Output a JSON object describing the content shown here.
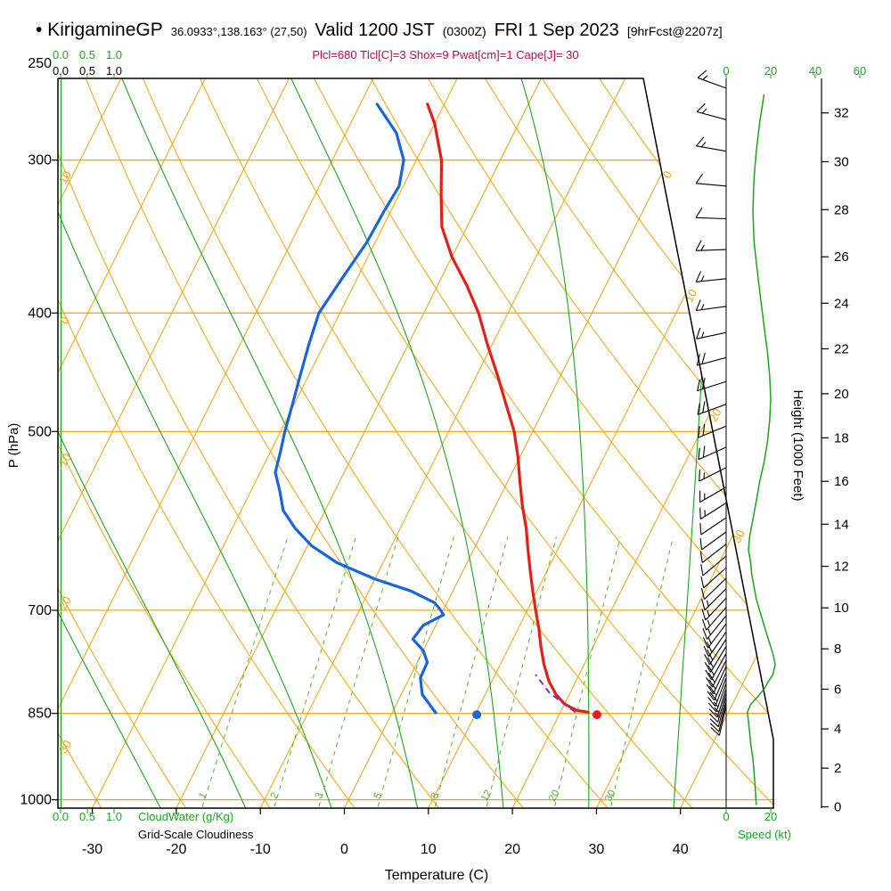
{
  "header": {
    "station": "• KirigamineGP",
    "coords": "36.0933°,138.163° (27,50)",
    "valid": "Valid 1200 JST",
    "valid_sub": "(0300Z)",
    "date": "FRI 1 Sep 2023",
    "fcst": "[9hrFcst@2207z]"
  },
  "params_line": "Plcl=680 Tlcl[C]=3 Shox=9 Pwat[cm]=1 Cape[J]= 30",
  "colors": {
    "grid_orange": "#f2a107",
    "green": "#1ca51c",
    "mixing_green": "#55b42e",
    "temperature_red": "#e32017",
    "dewpoint_blue": "#1a66d9",
    "parcel_purple": "#7b2fbe",
    "params_magenta": "#cc0055",
    "frame_black": "#000000"
  },
  "chart_data": {
    "type": "line",
    "diagram": "skew-t log-p forecast sounding",
    "pressure_axis": {
      "label": "P (hPa)",
      "ticks": [
        250,
        300,
        400,
        500,
        700,
        850,
        1000
      ],
      "gridlines": [
        300,
        400,
        500,
        700,
        850,
        1000
      ],
      "range": [
        250,
        1015
      ]
    },
    "temperature_axis": {
      "label": "Temperature (C)",
      "ticks": [
        -30,
        -20,
        -10,
        0,
        10,
        20,
        30,
        40
      ]
    },
    "height_axis": {
      "label": "Height (1000 Feet)",
      "ticks": [
        0,
        2,
        4,
        6,
        8,
        10,
        12,
        14,
        16,
        18,
        20,
        22,
        24,
        26,
        28,
        30,
        32
      ]
    },
    "speed_axis": {
      "label": "Speed (kt)",
      "top_ticks": [
        0,
        20,
        40,
        60
      ],
      "bottom_ticks": [
        0,
        20
      ]
    },
    "cloudwater_axis": {
      "label": "CloudWater (g/Kg)",
      "ticks": [
        "0.0",
        "0.5",
        "1.0"
      ]
    },
    "cloudiness_axis": {
      "label": "Grid-Scale Cloudiness",
      "ticks": [
        "0.0",
        "0.5",
        "1.0"
      ]
    },
    "dry_adiabat_labels": [
      10,
      0,
      -10,
      -20,
      -30
    ],
    "isotherm_labels_diagonal": [
      0,
      10,
      20,
      30
    ],
    "mixing_ratio_lines": [
      1,
      2,
      3,
      5,
      8,
      12,
      20,
      30
    ],
    "moist_adiabat_starts": [
      -20,
      -10,
      0,
      10,
      20,
      30,
      40
    ],
    "isotherm_range": {
      "min": -80,
      "max": 40,
      "step": 10
    },
    "dry_adiabat_range": {
      "min": -40,
      "max": 140,
      "step": 10
    },
    "temperature_profile": [
      [
        270,
        -32
      ],
      [
        280,
        -30
      ],
      [
        300,
        -27
      ],
      [
        320,
        -25
      ],
      [
        340,
        -23
      ],
      [
        360,
        -20
      ],
      [
        380,
        -16.5
      ],
      [
        400,
        -13.5
      ],
      [
        425,
        -10.5
      ],
      [
        450,
        -7.5
      ],
      [
        475,
        -4.8
      ],
      [
        500,
        -2.2
      ],
      [
        525,
        -0.2
      ],
      [
        550,
        1.5
      ],
      [
        575,
        3.2
      ],
      [
        600,
        5
      ],
      [
        625,
        6.5
      ],
      [
        650,
        8
      ],
      [
        675,
        9.5
      ],
      [
        700,
        11
      ],
      [
        725,
        12.5
      ],
      [
        750,
        13.8
      ],
      [
        775,
        15.2
      ],
      [
        800,
        16.8
      ],
      [
        820,
        18.4
      ],
      [
        835,
        20
      ],
      [
        845,
        21.8
      ],
      [
        848,
        23.3
      ]
    ],
    "dewpoint_profile": [
      [
        270,
        -38
      ],
      [
        285,
        -34
      ],
      [
        300,
        -31.5
      ],
      [
        315,
        -30.5
      ],
      [
        330,
        -30.8
      ],
      [
        350,
        -31
      ],
      [
        375,
        -31.8
      ],
      [
        400,
        -32.5
      ],
      [
        425,
        -31.8
      ],
      [
        450,
        -31
      ],
      [
        475,
        -30.2
      ],
      [
        500,
        -29.5
      ],
      [
        520,
        -28.8
      ],
      [
        540,
        -28.2
      ],
      [
        560,
        -26.5
      ],
      [
        580,
        -25
      ],
      [
        600,
        -22.5
      ],
      [
        620,
        -19.5
      ],
      [
        640,
        -15.5
      ],
      [
        660,
        -10
      ],
      [
        675,
        -5
      ],
      [
        690,
        -1.5
      ],
      [
        700,
        -0.3
      ],
      [
        706,
        0.3
      ],
      [
        720,
        -1.5
      ],
      [
        739,
        -1.9
      ],
      [
        755,
        0
      ],
      [
        772,
        1.2
      ],
      [
        795,
        1.3
      ],
      [
        820,
        2.5
      ],
      [
        849,
        5.2
      ]
    ],
    "parcel_profile": [
      [
        848,
        21.8
      ],
      [
        818,
        17.6
      ],
      [
        790,
        14.8
      ]
    ],
    "surface_points": {
      "temperature": [
        852,
        24.5
      ],
      "dewpoint": [
        852,
        10.2
      ]
    },
    "wind_speed_profile": [
      [
        265,
        17
      ],
      [
        280,
        15
      ],
      [
        295,
        13.5
      ],
      [
        310,
        12.5
      ],
      [
        330,
        12
      ],
      [
        350,
        12.5
      ],
      [
        370,
        14
      ],
      [
        390,
        15.5
      ],
      [
        410,
        17
      ],
      [
        430,
        18.5
      ],
      [
        450,
        19.5
      ],
      [
        470,
        20
      ],
      [
        490,
        19.5
      ],
      [
        510,
        18.5
      ],
      [
        530,
        17
      ],
      [
        550,
        15
      ],
      [
        570,
        13.5
      ],
      [
        590,
        12
      ],
      [
        610,
        10.5
      ],
      [
        625,
        10
      ],
      [
        640,
        11
      ],
      [
        655,
        11.5
      ],
      [
        670,
        12.5
      ],
      [
        685,
        13.5
      ],
      [
        700,
        15
      ],
      [
        715,
        16.5
      ],
      [
        730,
        18
      ],
      [
        745,
        19.5
      ],
      [
        760,
        21
      ],
      [
        775,
        22
      ],
      [
        790,
        21
      ],
      [
        800,
        19
      ],
      [
        812,
        17
      ],
      [
        824,
        14
      ],
      [
        836,
        11
      ],
      [
        848,
        9.5
      ],
      [
        862,
        10
      ],
      [
        880,
        10.5
      ],
      [
        900,
        11
      ],
      [
        925,
        12
      ],
      [
        950,
        12.5
      ],
      [
        975,
        13
      ],
      [
        1010,
        13.5
      ]
    ],
    "wind_barbs": [
      [
        262,
        290,
        17
      ],
      [
        278,
        285,
        15
      ],
      [
        295,
        280,
        13
      ],
      [
        315,
        275,
        12
      ],
      [
        335,
        272,
        12
      ],
      [
        355,
        268,
        13
      ],
      [
        375,
        264,
        15
      ],
      [
        395,
        262,
        16
      ],
      [
        415,
        258,
        17
      ],
      [
        435,
        255,
        19
      ],
      [
        455,
        252,
        20
      ],
      [
        475,
        250,
        20
      ],
      [
        495,
        248,
        19
      ],
      [
        515,
        246,
        18
      ],
      [
        535,
        243,
        16
      ],
      [
        555,
        240,
        14
      ],
      [
        572,
        238,
        13
      ],
      [
        588,
        236,
        12
      ],
      [
        604,
        234,
        11
      ],
      [
        618,
        232,
        10
      ],
      [
        632,
        230,
        11
      ],
      [
        646,
        228,
        12
      ],
      [
        659,
        226,
        12
      ],
      [
        672,
        225,
        13
      ],
      [
        684,
        223,
        14
      ],
      [
        696,
        221,
        15
      ],
      [
        707,
        219,
        16
      ],
      [
        718,
        217,
        17
      ],
      [
        729,
        215,
        18
      ],
      [
        739,
        213,
        19
      ],
      [
        749,
        211,
        20
      ],
      [
        759,
        209,
        21
      ],
      [
        769,
        207,
        22
      ],
      [
        778,
        205,
        21
      ],
      [
        787,
        203,
        20
      ],
      [
        795,
        201,
        18
      ],
      [
        803,
        199,
        17
      ],
      [
        811,
        197,
        15
      ],
      [
        818,
        196,
        13
      ],
      [
        825,
        195,
        12
      ],
      [
        832,
        194,
        11
      ],
      [
        838,
        193,
        10
      ]
    ]
  }
}
